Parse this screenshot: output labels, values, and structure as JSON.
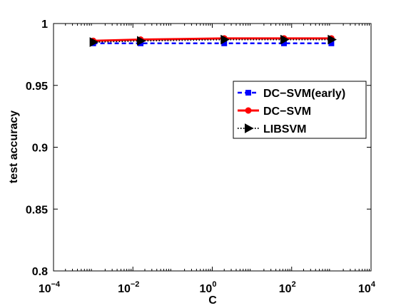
{
  "chart_data": {
    "type": "line",
    "xscale": "log",
    "xlim": [
      0.0001,
      10000
    ],
    "ylim": [
      0.8,
      1.0
    ],
    "xlabel": "C",
    "ylabel": "test accuracy",
    "xticks": [
      {
        "value": 0.0001,
        "base": "10",
        "exp": "−4"
      },
      {
        "value": 0.01,
        "base": "10",
        "exp": "−2"
      },
      {
        "value": 1,
        "base": "10",
        "exp": "0"
      },
      {
        "value": 100,
        "base": "10",
        "exp": "2"
      },
      {
        "value": 10000,
        "base": "10",
        "exp": "4"
      }
    ],
    "yticks": [
      {
        "value": 0.8,
        "label": "0.8"
      },
      {
        "value": 0.85,
        "label": "0.85"
      },
      {
        "value": 0.9,
        "label": "0.9"
      },
      {
        "value": 0.95,
        "label": "0.95"
      },
      {
        "value": 1.0,
        "label": "1"
      }
    ],
    "legend_position": "right",
    "series": [
      {
        "name": "DC−SVM(early)",
        "color": "#0000ff",
        "dash": "dashed",
        "marker": "square",
        "x": [
          0.001,
          0.015625,
          2,
          64,
          1000
        ],
        "y": [
          0.984,
          0.984,
          0.984,
          0.984,
          0.984
        ]
      },
      {
        "name": "DC−SVM",
        "color": "#ff0000",
        "dash": "solid",
        "marker": "circle",
        "x": [
          0.001,
          0.015625,
          2,
          64,
          1000
        ],
        "y": [
          0.986,
          0.987,
          0.988,
          0.988,
          0.988
        ]
      },
      {
        "name": "LIBSVM",
        "color": "#000000",
        "dash": "dotted",
        "marker": "triangle-right",
        "x": [
          0.001,
          0.015625,
          2,
          64,
          1000
        ],
        "y": [
          0.985,
          0.986,
          0.987,
          0.987,
          0.987
        ]
      }
    ]
  }
}
